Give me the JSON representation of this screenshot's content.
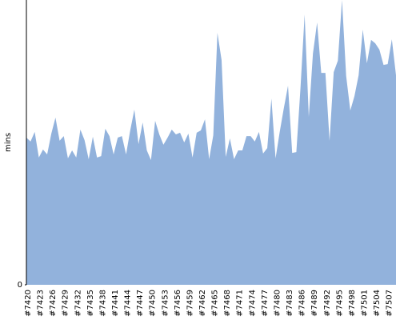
{
  "chart_data": {
    "type": "area",
    "y_label": "mins",
    "color": "#92b2dc",
    "categories": [
      "#7420",
      null,
      null,
      "#7423",
      null,
      null,
      "#7426",
      null,
      null,
      "#7429",
      null,
      null,
      "#7432",
      null,
      null,
      "#7435",
      null,
      null,
      "#7438",
      null,
      null,
      "#7441",
      null,
      null,
      "#7444",
      null,
      null,
      "#7447",
      null,
      null,
      "#7450",
      null,
      null,
      "#7453",
      null,
      null,
      "#7456",
      null,
      null,
      "#7459",
      null,
      null,
      "#7462",
      null,
      null,
      "#7465",
      null,
      null,
      "#7468",
      null,
      null,
      "#7471",
      null,
      null,
      "#7474",
      null,
      null,
      "#7477",
      null,
      null,
      "#7480",
      null,
      null,
      "#7483",
      null,
      null,
      "#7486",
      null,
      null,
      "#7489",
      null,
      null,
      "#7492",
      null,
      null,
      "#7495",
      null,
      null,
      "#7498",
      null,
      null,
      "#7501",
      null,
      null,
      "#7504",
      null,
      null,
      "#7507",
      null,
      null
    ],
    "values": [
      51.7,
      50.3,
      53.7,
      44.7,
      47.5,
      45.8,
      53.1,
      58.7,
      50.6,
      52.2,
      44.4,
      47.2,
      44.7,
      54.5,
      50.8,
      44.1,
      52.0,
      44.7,
      45.2,
      54.8,
      52.2,
      45.8,
      51.7,
      52.2,
      45.8,
      54.2,
      61.5,
      49.4,
      57.0,
      47.2,
      43.8,
      57.6,
      52.8,
      49.2,
      51.7,
      54.5,
      52.8,
      53.4,
      50.0,
      53.1,
      44.7,
      53.4,
      54.2,
      58.1,
      44.1,
      52.5,
      88.5,
      78.9,
      44.9,
      51.4,
      44.1,
      47.2,
      47.2,
      52.2,
      52.2,
      50.3,
      53.7,
      46.1,
      48.0,
      65.4,
      44.4,
      53.7,
      62.1,
      69.9,
      46.3,
      46.6,
      69.1,
      94.9,
      59.0,
      81.2,
      92.1,
      74.4,
      74.4,
      50.6,
      74.7,
      78.7,
      100,
      73.3,
      61.2,
      66.3,
      73.6,
      89.6,
      77.8,
      86.0,
      84.8,
      82.6,
      77.2,
      77.5,
      86.2,
      73.6
    ],
    "ylim": [
      0,
      100
    ],
    "yticks": [
      0
    ]
  }
}
